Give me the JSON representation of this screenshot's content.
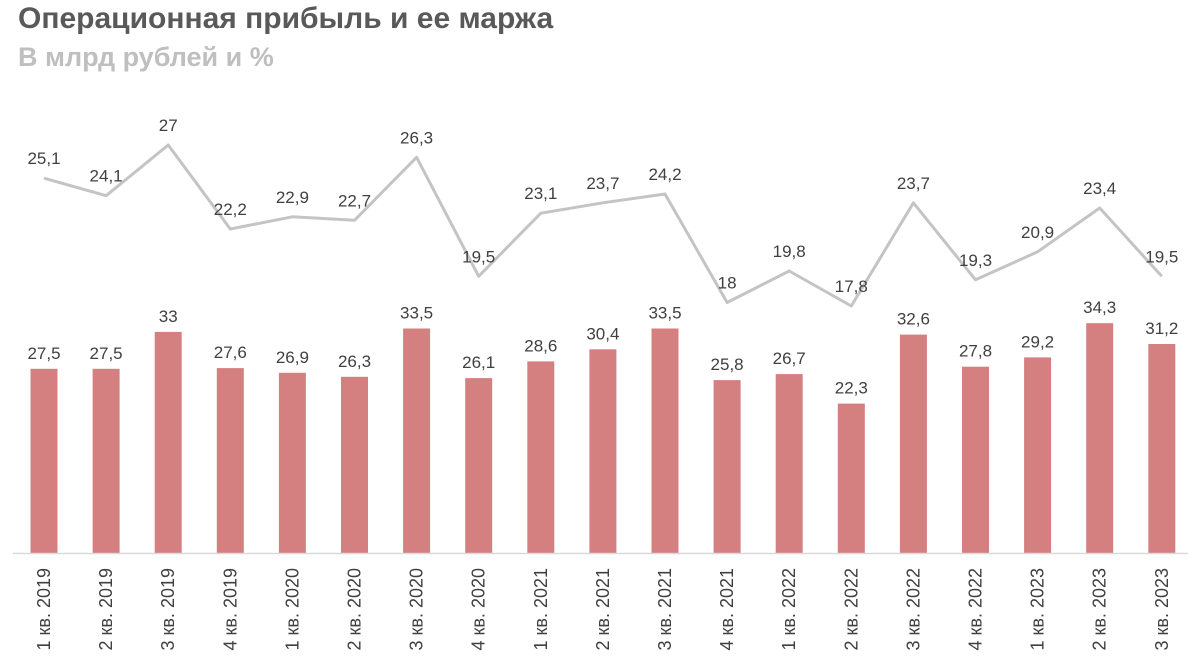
{
  "chart_data": {
    "type": "bar",
    "title": "Операционная прибыль и ее маржа",
    "subtitle": "В млрд рублей и %",
    "categories": [
      "1 кв. 2019",
      "2 кв. 2019",
      "3 кв. 2019",
      "4 кв. 2019",
      "1 кв. 2020",
      "2 кв. 2020",
      "3 кв. 2020",
      "4 кв. 2020",
      "1 кв. 2021",
      "2 кв. 2021",
      "3 кв. 2021",
      "4 кв. 2021",
      "1 кв. 2022",
      "2 кв. 2022",
      "3 кв. 2022",
      "4 кв. 2022",
      "1 кв. 2023",
      "2 кв. 2023",
      "3 кв. 2023"
    ],
    "series": [
      {
        "type": "bar",
        "values": [
          27.5,
          27.5,
          33,
          27.6,
          26.9,
          26.3,
          33.5,
          26.1,
          28.6,
          30.4,
          33.5,
          25.8,
          26.7,
          22.3,
          32.6,
          27.8,
          29.2,
          34.3,
          31.2
        ],
        "labels": [
          "27,5",
          "27,5",
          "33",
          "27,6",
          "26,9",
          "26,3",
          "33,5",
          "26,1",
          "28,6",
          "30,4",
          "33,5",
          "25,8",
          "26,7",
          "22,3",
          "32,6",
          "27,8",
          "29,2",
          "34,3",
          "31,2"
        ],
        "color": "#d47f80"
      },
      {
        "type": "line",
        "values": [
          25.1,
          24.1,
          27,
          22.2,
          22.9,
          22.7,
          26.3,
          19.5,
          23.1,
          23.7,
          24.2,
          18,
          19.8,
          17.8,
          23.7,
          19.3,
          20.9,
          23.4,
          19.5
        ],
        "labels": [
          "25,1",
          "24,1",
          "27",
          "22,2",
          "22,9",
          "22,7",
          "26,3",
          "19,5",
          "23,1",
          "23,7",
          "24,2",
          "18",
          "19,8",
          "17,8",
          "23,7",
          "19,3",
          "20,9",
          "23,4",
          "19,5"
        ],
        "color": "#c4c4c4"
      }
    ],
    "legend": "none",
    "grid": false
  }
}
